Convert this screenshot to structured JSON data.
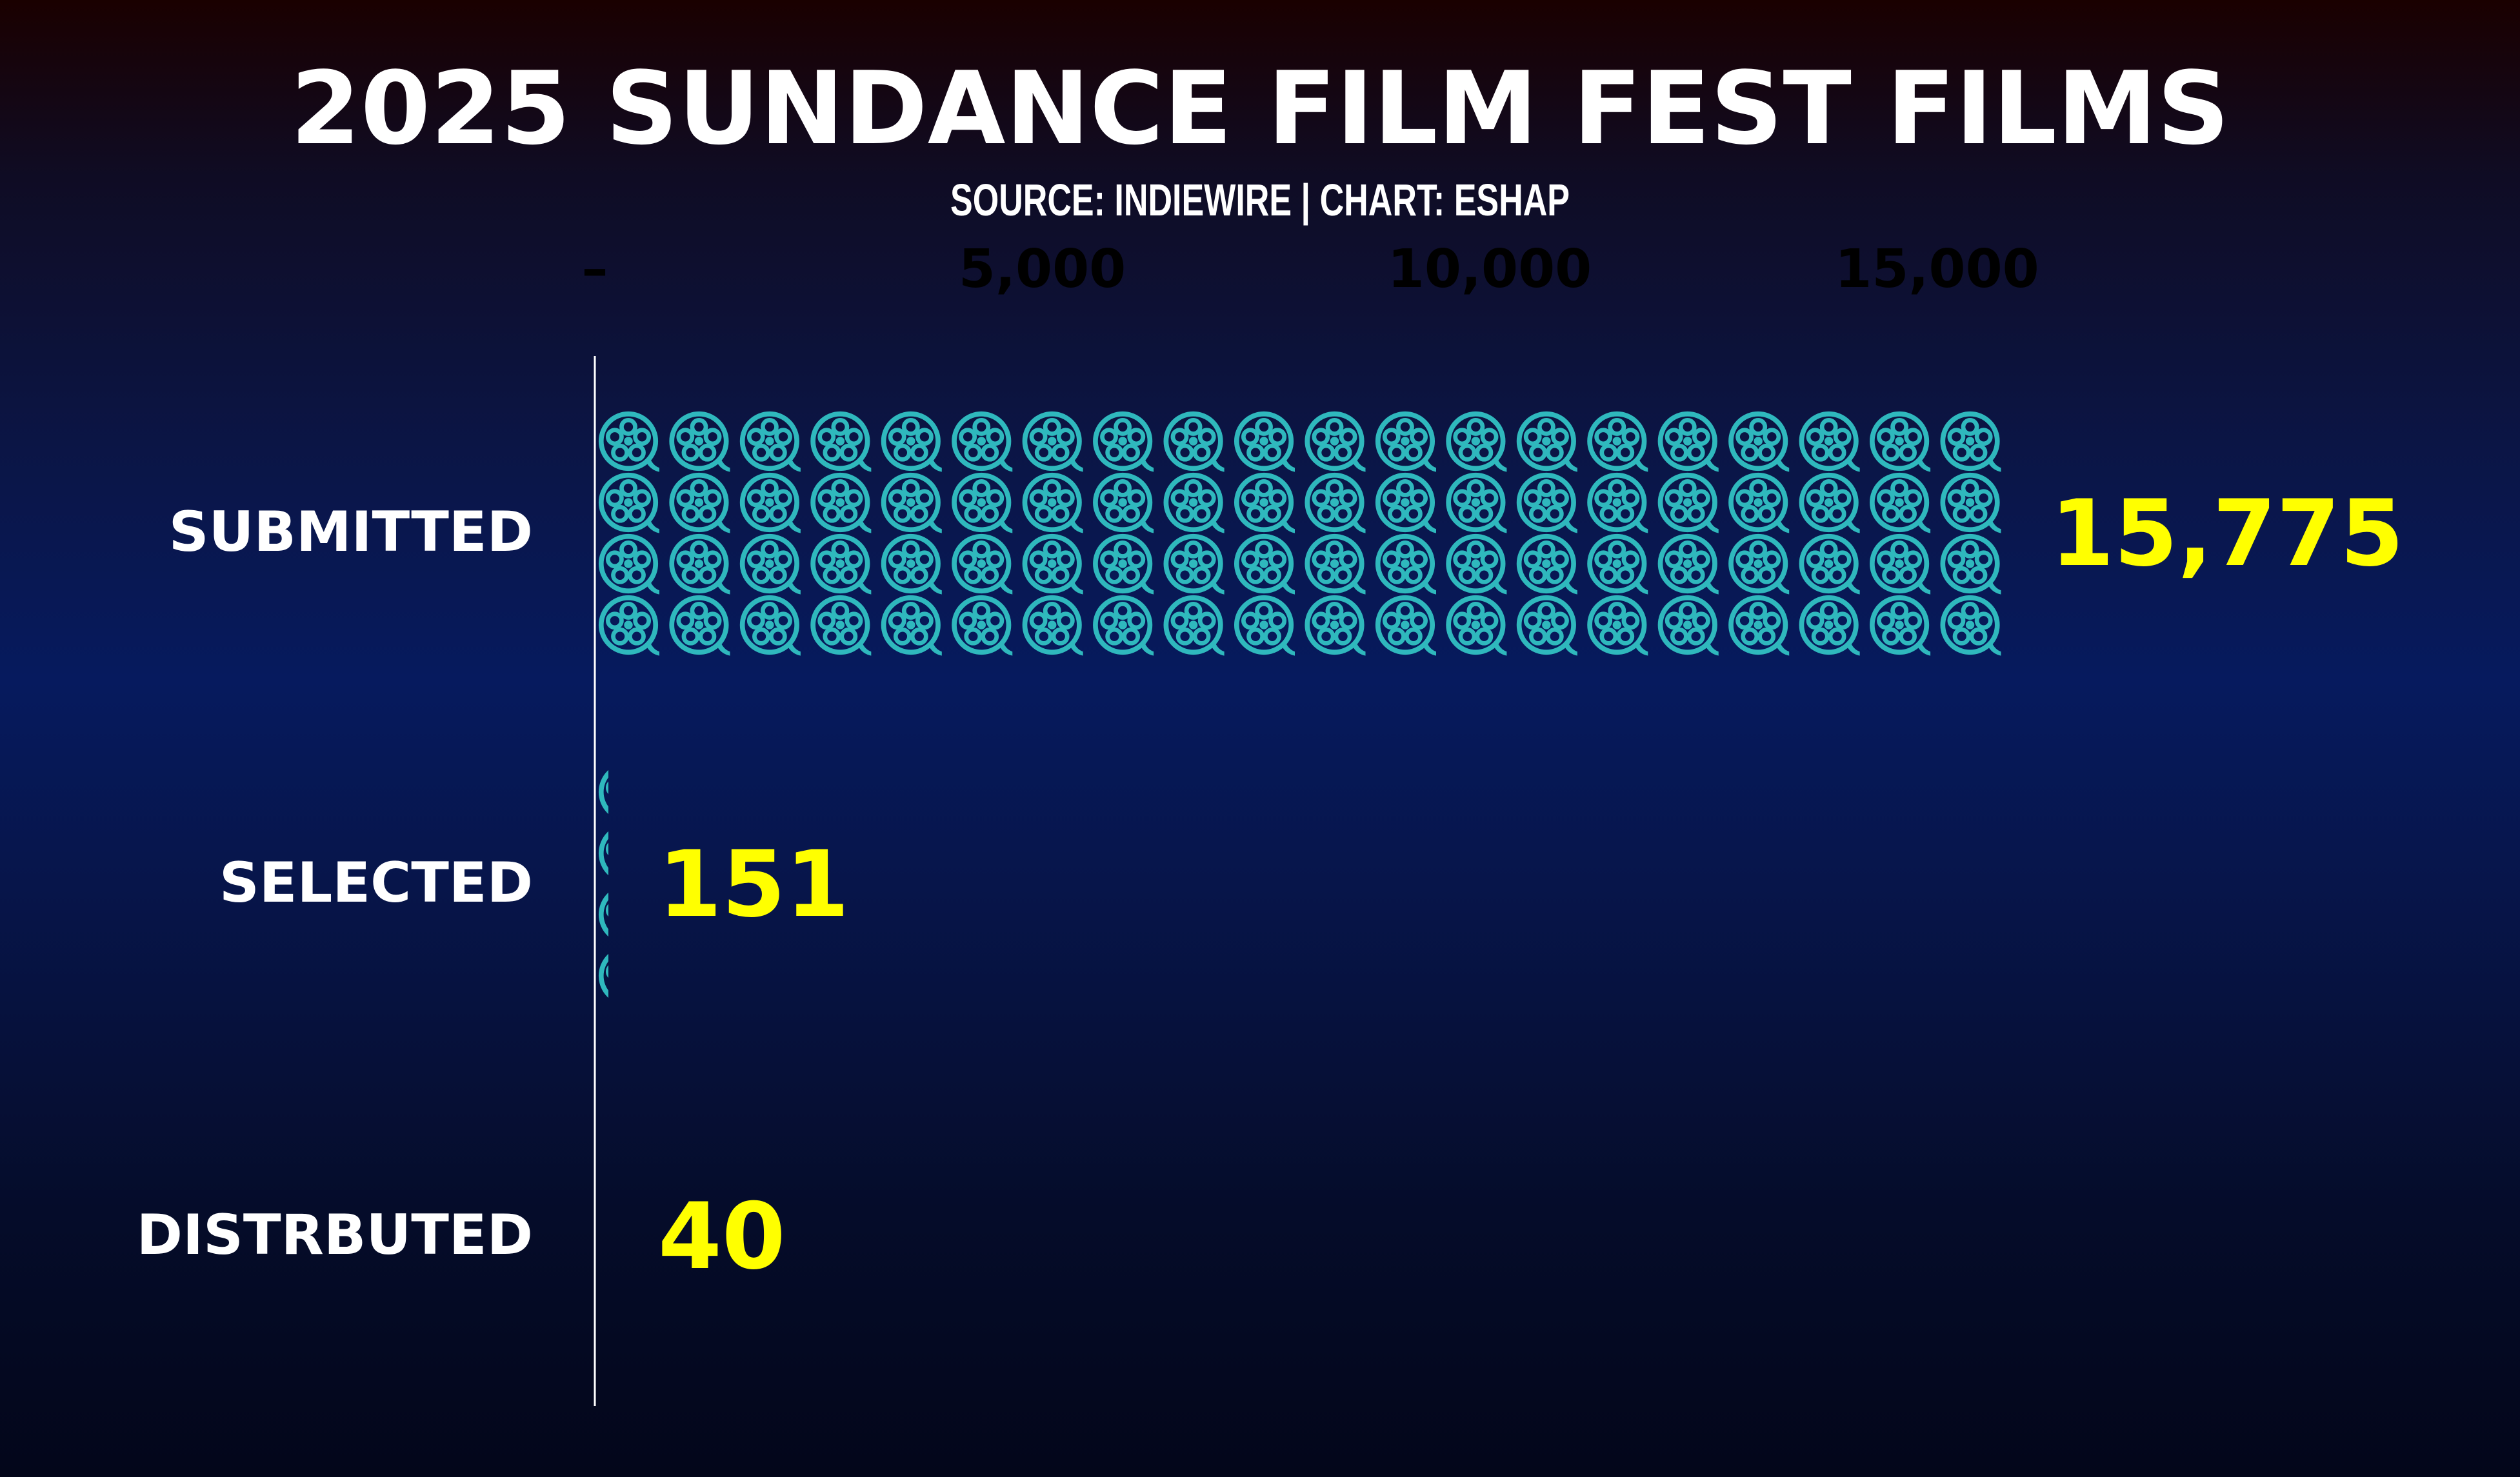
{
  "chart_data": {
    "type": "bar",
    "orientation": "horizontal",
    "title": "2025 SUNDANCE FILM FEST FILMS",
    "subtitle": "SOURCE: INDIEWIRE | CHART: ESHAP",
    "categories": [
      "SUBMITTED",
      "SELECTED",
      "DISTRBUTED"
    ],
    "values": [
      15775,
      151,
      40
    ],
    "value_labels": [
      "15,775",
      "151",
      "40"
    ],
    "x_ticks": [
      0,
      5000,
      10000,
      15000
    ],
    "x_tick_labels": [
      "–",
      "5,000",
      "10,000",
      "15,000"
    ],
    "xlim": [
      0,
      16000
    ],
    "xlabel": "",
    "ylabel": "",
    "grid": false,
    "legend": "none",
    "mark": "film-reel-icon",
    "colors": {
      "mark": "#2fb8bd",
      "value_label": "#ffff00",
      "category_label": "#ffffff",
      "title": "#ffffff",
      "tick_label": "#000000",
      "axis_line": "#ffffff"
    }
  }
}
